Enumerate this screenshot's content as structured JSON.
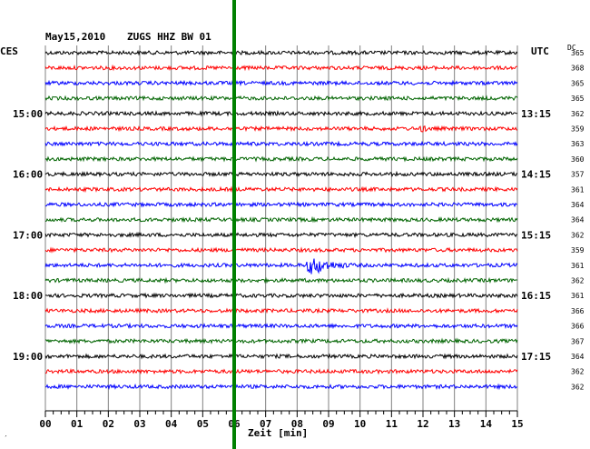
{
  "header": {
    "date": "May15,2010",
    "station": "ZUGS HHZ BW 01",
    "left_zone": "CES",
    "right_zone": "UTC",
    "dc_label": "DC"
  },
  "footer_mark": "′",
  "chart_data": {
    "type": "seismogram",
    "xlabel": "Zeit [min]",
    "xlim": [
      0,
      15
    ],
    "x_ticks": [
      "00",
      "01",
      "02",
      "03",
      "04",
      "05",
      "06",
      "07",
      "08",
      "09",
      "10",
      "11",
      "12",
      "13",
      "14",
      "15"
    ],
    "minor_ticks_per_minute": 4,
    "trace_interval_min": 15,
    "trace_count": 23,
    "trace_colors": [
      "#000000",
      "#ff0000",
      "#0000ff",
      "#006400"
    ],
    "marker_line": {
      "x_min": 6,
      "color": "#008000"
    },
    "left_time_labels": [
      {
        "trace": 4,
        "label": "15:00"
      },
      {
        "trace": 8,
        "label": "16:00"
      },
      {
        "trace": 12,
        "label": "17:00"
      },
      {
        "trace": 16,
        "label": "18:00"
      },
      {
        "trace": 20,
        "label": "19:00"
      }
    ],
    "right_time_labels": [
      {
        "trace": 4,
        "label": "13:15"
      },
      {
        "trace": 8,
        "label": "14:15"
      },
      {
        "trace": 12,
        "label": "15:15"
      },
      {
        "trace": 16,
        "label": "16:15"
      },
      {
        "trace": 20,
        "label": "17:15"
      }
    ],
    "dc_values": [
      "365",
      "368",
      "365",
      "365",
      "362",
      "359",
      "363",
      "360",
      "357",
      "361",
      "364",
      "364",
      "362",
      "359",
      "361",
      "362",
      "361",
      "366",
      "366",
      "367",
      "364",
      "362",
      "362"
    ],
    "events": [
      {
        "trace": 14,
        "start_min": 8.2,
        "end_min": 9.8,
        "peak_min": 8.5,
        "relative_amplitude": 5
      },
      {
        "trace": 5,
        "start_min": 11.9,
        "end_min": 12.2,
        "peak_min": 12.0,
        "relative_amplitude": 2
      }
    ]
  }
}
